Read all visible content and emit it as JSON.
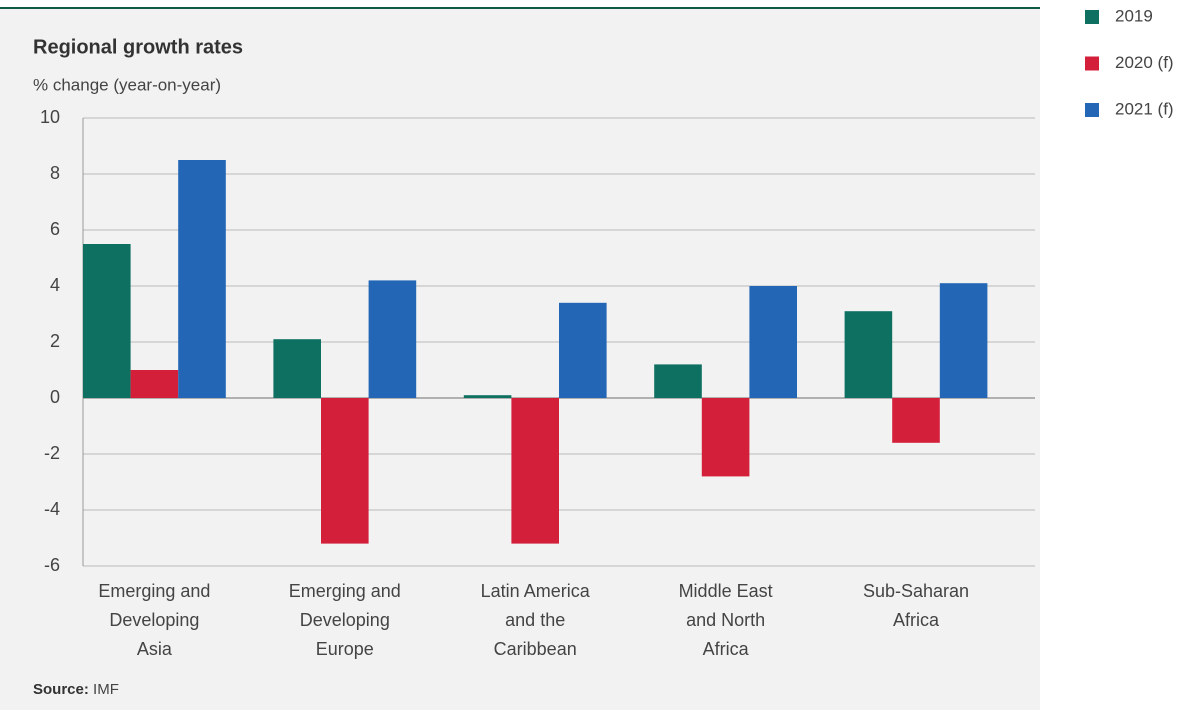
{
  "chart_data": {
    "type": "bar",
    "title": "Regional growth rates",
    "subtitle": "% change (year-on-year)",
    "categories": [
      [
        "Emerging and",
        "Developing",
        "Asia"
      ],
      [
        "Emerging and",
        "Developing",
        "Europe"
      ],
      [
        "Latin America",
        "and the",
        "Caribbean"
      ],
      [
        "Middle East",
        "and North",
        "Africa"
      ],
      [
        "Sub-Saharan",
        "Africa"
      ]
    ],
    "series": [
      {
        "name": "2019",
        "color": "#0e7060",
        "values": [
          5.5,
          2.1,
          0.1,
          1.2,
          3.1
        ]
      },
      {
        "name": "2020 (f)",
        "color": "#d41f3a",
        "values": [
          1.0,
          -5.2,
          -5.2,
          -2.8,
          -1.6
        ]
      },
      {
        "name": "2021 (f)",
        "color": "#2266b5",
        "values": [
          8.5,
          4.2,
          3.4,
          4.0,
          4.1
        ]
      }
    ],
    "ylim": [
      -6,
      10
    ],
    "yticks": [
      -6,
      -4,
      -2,
      0,
      2,
      4,
      6,
      8,
      10
    ],
    "grid": true,
    "source_label": "Source:",
    "source": "IMF"
  }
}
